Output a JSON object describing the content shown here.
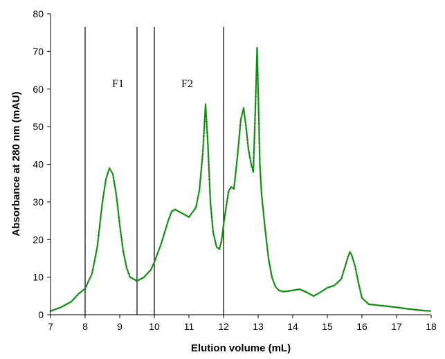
{
  "chart_data": {
    "type": "line",
    "title": "",
    "xlabel": "Elution volume (mL)",
    "ylabel": "Absorbance at 280 nm (mAU)",
    "xlim": [
      7,
      18
    ],
    "ylim": [
      0,
      80
    ],
    "xticks": [
      "7",
      "8",
      "9",
      "10",
      "11",
      "12",
      "13",
      "14",
      "15",
      "16",
      "17",
      "18"
    ],
    "yticks": [
      "0",
      "10",
      "20",
      "30",
      "40",
      "50",
      "60",
      "70",
      "80"
    ],
    "grid": false,
    "legend": "none",
    "series": [
      {
        "color": "#118811",
        "marker": "triangle",
        "x": [
          7.0,
          7.3,
          7.6,
          7.8,
          8.0,
          8.2,
          8.35,
          8.5,
          8.6,
          8.7,
          8.8,
          8.9,
          9.0,
          9.1,
          9.2,
          9.3,
          9.5,
          9.7,
          9.9,
          10.0,
          10.2,
          10.4,
          10.5,
          10.6,
          10.8,
          11.0,
          11.2,
          11.3,
          11.4,
          11.48,
          11.55,
          11.62,
          11.7,
          11.8,
          11.88,
          11.95,
          12.0,
          12.08,
          12.15,
          12.22,
          12.3,
          12.4,
          12.5,
          12.58,
          12.65,
          12.72,
          12.8,
          12.86,
          12.92,
          12.97,
          13.0,
          13.05,
          13.1,
          13.2,
          13.3,
          13.4,
          13.5,
          13.6,
          13.7,
          13.8,
          14.0,
          14.2,
          14.4,
          14.6,
          14.8,
          15.0,
          15.2,
          15.4,
          15.5,
          15.6,
          15.65,
          15.7,
          15.8,
          15.9,
          16.0,
          16.2,
          16.5,
          16.8,
          17.0,
          17.3,
          17.6,
          17.8,
          18.0
        ],
        "y": [
          1.0,
          2.0,
          3.5,
          5.5,
          7.0,
          11.0,
          18.0,
          30.0,
          36.0,
          39.0,
          37.5,
          32.0,
          24.0,
          17.0,
          12.5,
          10.0,
          9.0,
          10.0,
          12.0,
          14.0,
          19.0,
          25.0,
          27.5,
          28.0,
          27.0,
          26.0,
          28.5,
          33.0,
          43.0,
          56.0,
          45.0,
          30.0,
          22.0,
          18.0,
          17.5,
          20.0,
          24.0,
          29.0,
          33.0,
          34.0,
          33.5,
          42.0,
          52.0,
          55.0,
          50.0,
          44.0,
          40.0,
          38.0,
          55.0,
          71.0,
          60.0,
          40.0,
          32.0,
          23.0,
          15.0,
          10.0,
          7.5,
          6.5,
          6.2,
          6.2,
          6.5,
          6.8,
          6.0,
          5.0,
          6.0,
          7.2,
          7.8,
          9.5,
          12.5,
          15.5,
          16.7,
          16.0,
          13.0,
          8.5,
          4.5,
          2.8,
          2.5,
          2.2,
          2.0,
          1.6,
          1.3,
          1.1,
          1.0
        ]
      }
    ],
    "vertical_lines": [
      8.0,
      9.5,
      10.0,
      12.0
    ],
    "annotations": [
      {
        "text": "F1",
        "x": 8.95,
        "y": 60.5
      },
      {
        "text": "F2",
        "x": 10.95,
        "y": 60.5
      }
    ]
  }
}
